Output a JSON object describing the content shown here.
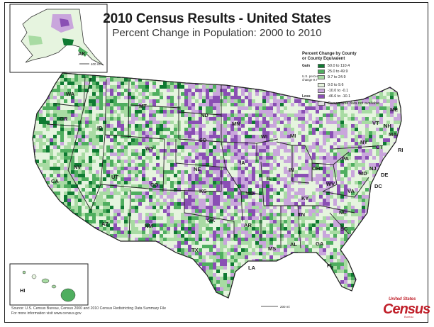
{
  "title": "2010 Census Results - United States",
  "subtitle": "Percent Change in Population:  2000 to 2010",
  "legend": {
    "title_line1": "Percent Change by County",
    "title_line2": "or County Equivalent",
    "gain_label": "Gain",
    "us_label_1": "U.S. percent",
    "us_label_2": "change 9.7",
    "loss_label": "Loss",
    "items": [
      {
        "range": "50.0 to 110.4",
        "color": "#0f7a32"
      },
      {
        "range": "25.0 to 49.9",
        "color": "#4fae5f"
      },
      {
        "range": "9.7 to 24.9",
        "color": "#a8dba3"
      },
      {
        "range": "0.0 to 9.6",
        "color": "#e6f4df"
      },
      {
        "range": "-10.0 to -0.1",
        "color": "#c9a6dc"
      },
      {
        "range": "-46.6 to -10.1",
        "color": "#8a4fb4"
      },
      {
        "range": "Comparable data not available",
        "color": "#dddddd"
      }
    ]
  },
  "inset_labels": {
    "alaska": "AK",
    "hawaii": "HI"
  },
  "states": [
    "WA",
    "OR",
    "CA",
    "NV",
    "ID",
    "MT",
    "WY",
    "UT",
    "AZ",
    "CO",
    "NM",
    "ND",
    "SD",
    "NE",
    "KS",
    "OK",
    "TX",
    "MN",
    "IA",
    "MO",
    "AR",
    "LA",
    "WI",
    "IL",
    "MI",
    "IN",
    "OH",
    "KY",
    "TN",
    "MS",
    "AL",
    "GA",
    "FL",
    "SC",
    "NC",
    "VA",
    "WV",
    "PA",
    "NY",
    "VT",
    "NH",
    "ME",
    "MA",
    "CT",
    "RI",
    "NJ",
    "DE",
    "MD",
    "DC"
  ],
  "scale": {
    "main": "200 mi",
    "alaska": "400 mi"
  },
  "source_line1": "Source:  U.S. Census Bureau, Census 2000 and 2010 Census Redistricting Data Summary File",
  "source_line2": "For more information visit www.census.gov",
  "logo": {
    "top": "United States",
    "main": "Census",
    "sub": "Bureau"
  }
}
